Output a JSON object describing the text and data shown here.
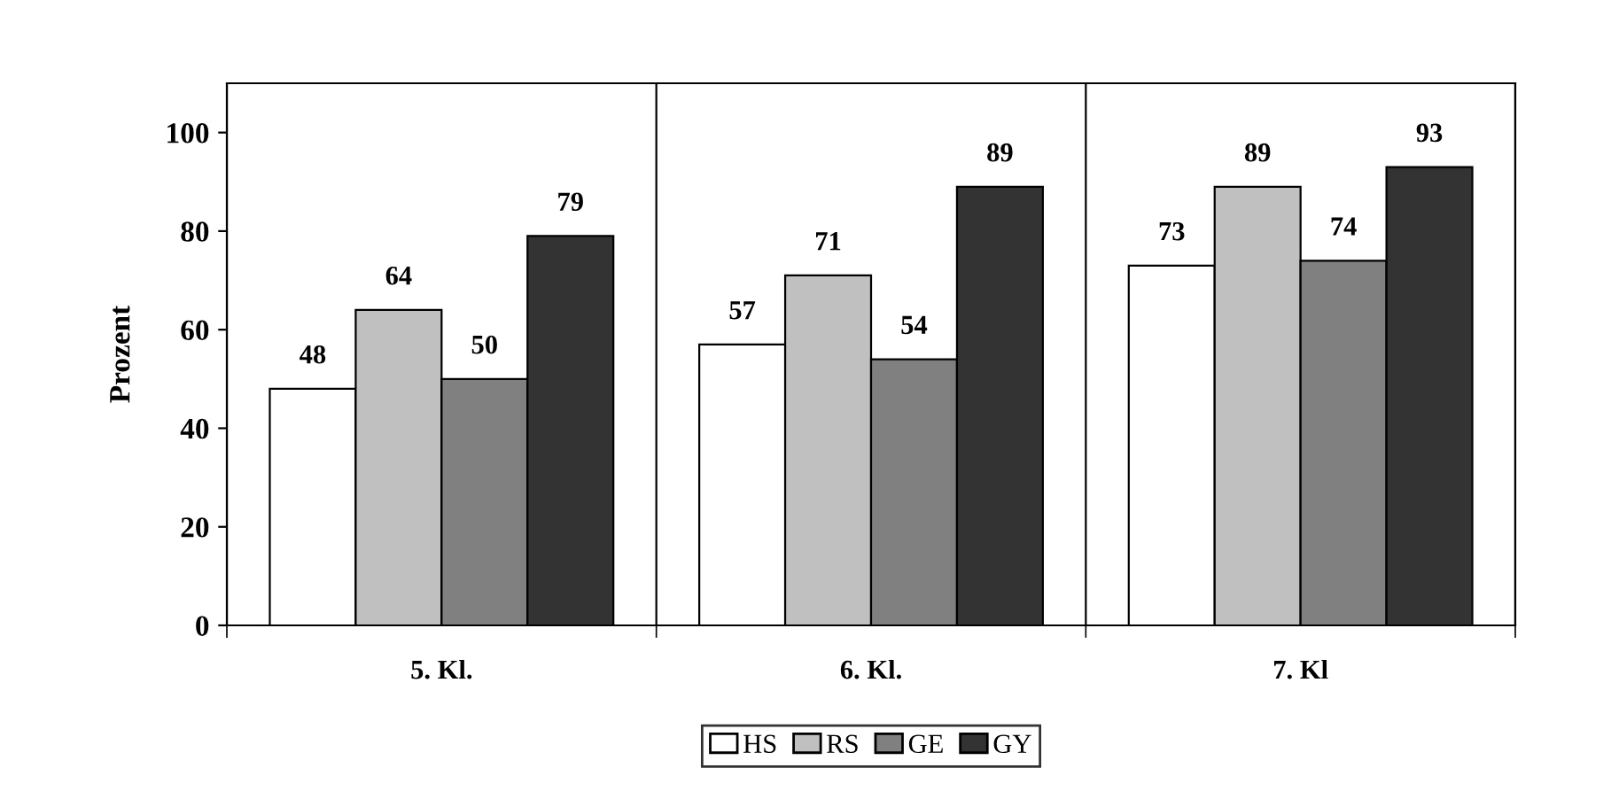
{
  "chart_data": {
    "type": "bar",
    "ylabel": "Prozent",
    "categories": [
      "5. Kl.",
      "6. Kl.",
      "7. Kl"
    ],
    "series": [
      {
        "name": "HS",
        "color": "#ffffff",
        "values": [
          48,
          57,
          73
        ]
      },
      {
        "name": "RS",
        "color": "#c0c0c0",
        "values": [
          64,
          71,
          89
        ]
      },
      {
        "name": "GE",
        "color": "#808080",
        "values": [
          50,
          54,
          74
        ]
      },
      {
        "name": "GY",
        "color": "#333333",
        "values": [
          79,
          89,
          93
        ]
      }
    ],
    "ylim": [
      0,
      110
    ],
    "yticks": [
      0,
      20,
      40,
      60,
      80,
      100
    ],
    "grid": "x",
    "data_labels": true,
    "legend": "bottom"
  }
}
